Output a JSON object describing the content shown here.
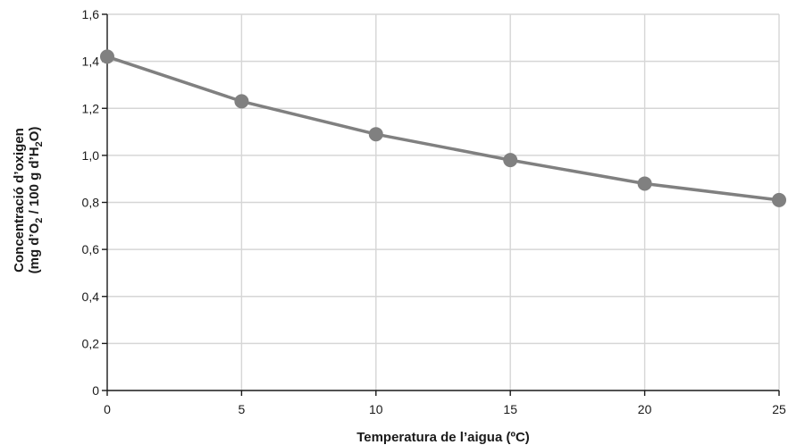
{
  "chart_data": {
    "type": "line",
    "x": [
      0,
      5,
      10,
      15,
      20,
      25
    ],
    "series": [
      {
        "values": [
          1.42,
          1.23,
          1.09,
          0.98,
          0.88,
          0.81
        ]
      }
    ],
    "xlim": [
      0,
      25
    ],
    "ylim": [
      0,
      1.6
    ],
    "xticks": [
      "0",
      "5",
      "10",
      "15",
      "20",
      "25"
    ],
    "yticks": [
      "0",
      "0,2",
      "0,4",
      "0,6",
      "0,8",
      "1,0",
      "1,2",
      "1,4",
      "1,6"
    ],
    "xlabel": "Temperatura de l’aigua (ºC)",
    "ylabel_line1": "Concentració d’oxigen",
    "ylabel_line2": {
      "prefix": "(mg d’O",
      "sub1": "2",
      "middle": " / 100 g d’H",
      "sub2": "2",
      "suffix": "O)"
    },
    "grid": true,
    "colors": {
      "line": "#808080",
      "marker": "#808080",
      "grid": "#d6d6d6",
      "axis": "#1a1a1a"
    }
  }
}
